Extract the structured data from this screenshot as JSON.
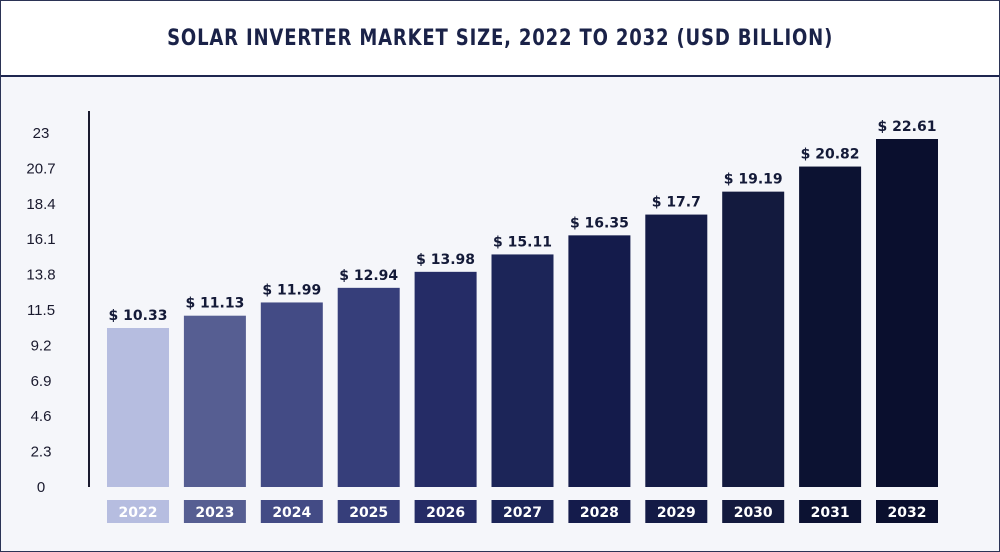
{
  "header": {
    "title": "SOLAR INVERTER MARKET SIZE, 2022 TO 2032 (USD BILLION)"
  },
  "chart_data": {
    "type": "bar",
    "title": "SOLAR INVERTER MARKET SIZE, 2022 TO 2032 (USD BILLION)",
    "categories": [
      "2022",
      "2023",
      "2024",
      "2025",
      "2026",
      "2027",
      "2028",
      "2029",
      "2030",
      "2031",
      "2032"
    ],
    "values": [
      10.33,
      11.13,
      11.99,
      12.94,
      13.98,
      15.11,
      16.35,
      17.7,
      19.19,
      20.82,
      22.61
    ],
    "data_labels": [
      "$ 10.33",
      "$ 11.13",
      "$ 11.99",
      "$ 12.94",
      "$ 13.98",
      "$ 15.11",
      "$ 16.35",
      "$ 17.7",
      "$ 19.19",
      "$ 20.82",
      "$ 22.61"
    ],
    "yticks": [
      "0",
      "2.3",
      "4.6",
      "6.9",
      "9.2",
      "11.5",
      "13.8",
      "16.1",
      "18.4",
      "20.7",
      "23"
    ],
    "ylim": [
      0,
      23
    ],
    "xlabel": "",
    "ylabel": "",
    "grid": false,
    "colors": [
      "#b6bde0",
      "#565e92",
      "#434b85",
      "#363e7a",
      "#252c66",
      "#1c2558",
      "#141b4b",
      "#141b46",
      "#131a3e",
      "#0c1232",
      "#0a0f2e"
    ]
  }
}
